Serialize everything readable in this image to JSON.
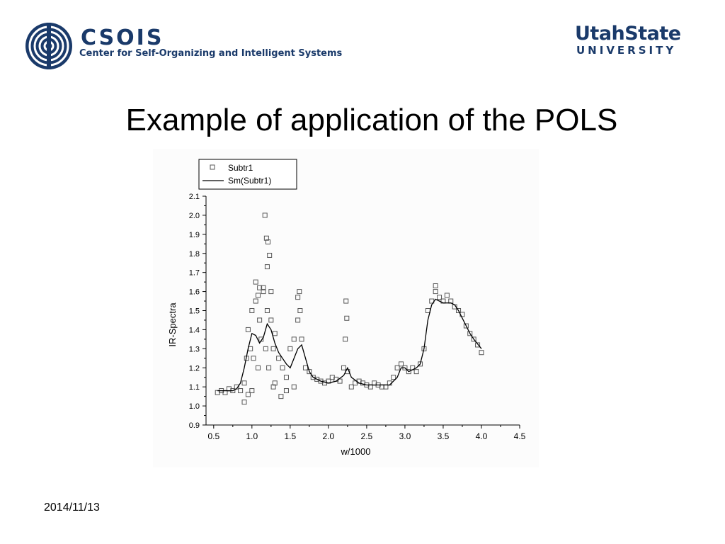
{
  "header": {
    "left_logo": {
      "wordmark": "CSOIS",
      "tagline": "Center for Self-Organizing and Intelligent Systems"
    },
    "right_logo": {
      "line1": "UtahState",
      "line2": "UNIVERSITY"
    },
    "brand_color": "#1a3a6a"
  },
  "slide": {
    "title": "Example of application of the POLS"
  },
  "footer": {
    "date": "2014/11/13"
  },
  "chart_data": {
    "type": "scatter",
    "xlabel": "w/1000",
    "ylabel": "IR-Spectra",
    "xlim": [
      0.4,
      4.5
    ],
    "ylim": [
      0.9,
      2.1
    ],
    "xticks": [
      "0.5",
      "1.0",
      "1.5",
      "2.0",
      "2.5",
      "3.0",
      "3.5",
      "4.0",
      "4.5"
    ],
    "yticks": [
      "0.9",
      "1.0",
      "1.1",
      "1.2",
      "1.3",
      "1.4",
      "1.5",
      "1.6",
      "1.7",
      "1.8",
      "1.9",
      "2.0",
      "2.1"
    ],
    "grid": false,
    "legend_position": "top-left",
    "series": [
      {
        "name": "Subtr1",
        "style": "open-square-markers",
        "x": [
          0.55,
          0.6,
          0.65,
          0.7,
          0.75,
          0.8,
          0.85,
          0.9,
          0.93,
          0.95,
          0.98,
          1.0,
          1.02,
          1.05,
          1.08,
          1.1,
          1.12,
          1.15,
          1.18,
          1.2,
          1.22,
          1.25,
          1.28,
          1.3,
          1.35,
          1.4,
          1.45,
          1.5,
          1.55,
          1.6,
          1.63,
          1.65,
          1.7,
          1.75,
          1.8,
          1.85,
          1.9,
          1.95,
          2.0,
          2.05,
          2.1,
          2.15,
          2.2,
          2.22,
          2.25,
          2.3,
          2.35,
          2.4,
          2.45,
          2.5,
          2.55,
          2.6,
          2.65,
          2.7,
          2.75,
          2.8,
          2.85,
          2.9,
          2.95,
          3.0,
          3.05,
          3.1,
          3.15,
          3.2,
          3.25,
          3.3,
          3.35,
          3.4,
          3.45,
          3.5,
          3.55,
          3.6,
          3.65,
          3.7,
          3.75,
          3.8,
          3.85,
          3.9,
          3.95,
          4.0,
          1.17,
          1.19,
          1.21,
          1.2,
          1.23,
          1.05,
          1.1,
          1.62,
          1.6,
          2.23,
          2.24,
          0.9,
          1.0,
          1.3,
          1.38,
          1.15,
          1.25,
          1.45,
          1.55,
          1.08,
          1.28,
          0.95,
          3.4
        ],
        "y": [
          1.07,
          1.08,
          1.07,
          1.09,
          1.08,
          1.1,
          1.08,
          1.12,
          1.25,
          1.4,
          1.3,
          1.5,
          1.25,
          1.55,
          1.2,
          1.45,
          1.35,
          1.6,
          1.3,
          1.5,
          1.2,
          1.45,
          1.3,
          1.38,
          1.25,
          1.2,
          1.15,
          1.3,
          1.35,
          1.45,
          1.5,
          1.35,
          1.2,
          1.18,
          1.15,
          1.14,
          1.13,
          1.12,
          1.13,
          1.15,
          1.14,
          1.13,
          1.2,
          1.35,
          1.18,
          1.1,
          1.12,
          1.13,
          1.12,
          1.11,
          1.1,
          1.12,
          1.11,
          1.1,
          1.1,
          1.12,
          1.15,
          1.2,
          1.22,
          1.2,
          1.18,
          1.2,
          1.18,
          1.22,
          1.3,
          1.5,
          1.55,
          1.6,
          1.57,
          1.55,
          1.58,
          1.55,
          1.52,
          1.5,
          1.48,
          1.42,
          1.38,
          1.35,
          1.32,
          1.28,
          2.0,
          1.88,
          1.86,
          1.73,
          1.79,
          1.65,
          1.62,
          1.6,
          1.57,
          1.55,
          1.46,
          1.02,
          1.08,
          1.12,
          1.05,
          1.62,
          1.6,
          1.08,
          1.1,
          1.58,
          1.1,
          1.06,
          1.63
        ]
      },
      {
        "name": "Sm(Subtr1)",
        "style": "line",
        "x": [
          0.55,
          0.65,
          0.75,
          0.8,
          0.85,
          0.9,
          0.95,
          1.0,
          1.05,
          1.1,
          1.15,
          1.2,
          1.25,
          1.3,
          1.35,
          1.4,
          1.45,
          1.5,
          1.55,
          1.6,
          1.65,
          1.7,
          1.75,
          1.8,
          1.9,
          2.0,
          2.1,
          2.2,
          2.25,
          2.3,
          2.4,
          2.5,
          2.6,
          2.7,
          2.8,
          2.9,
          2.95,
          3.0,
          3.05,
          3.1,
          3.15,
          3.2,
          3.25,
          3.3,
          3.35,
          3.4,
          3.45,
          3.5,
          3.55,
          3.6,
          3.65,
          3.7,
          3.75,
          3.8,
          3.85,
          3.9,
          4.0
        ],
        "y": [
          1.08,
          1.08,
          1.08,
          1.09,
          1.12,
          1.2,
          1.3,
          1.38,
          1.37,
          1.33,
          1.36,
          1.43,
          1.4,
          1.33,
          1.28,
          1.25,
          1.22,
          1.2,
          1.25,
          1.3,
          1.32,
          1.25,
          1.18,
          1.15,
          1.13,
          1.12,
          1.13,
          1.16,
          1.2,
          1.15,
          1.12,
          1.11,
          1.11,
          1.11,
          1.11,
          1.15,
          1.2,
          1.2,
          1.18,
          1.19,
          1.2,
          1.22,
          1.3,
          1.45,
          1.53,
          1.56,
          1.55,
          1.54,
          1.54,
          1.54,
          1.53,
          1.5,
          1.46,
          1.42,
          1.38,
          1.35,
          1.3
        ]
      }
    ]
  }
}
